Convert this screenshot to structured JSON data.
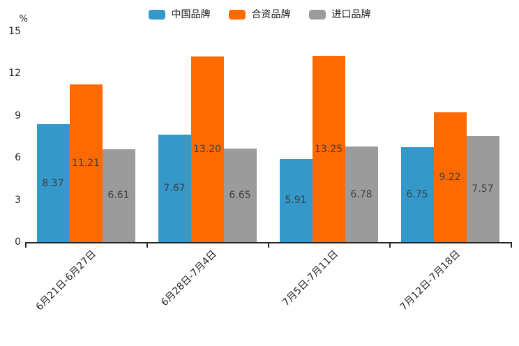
{
  "chart_data": {
    "type": "bar",
    "title": "",
    "xlabel": "",
    "ylabel": "%",
    "categories": [
      "6月21日-6月27日",
      "6月28日-7月4日",
      "7月5日-7月11日",
      "7月12日-7月18日"
    ],
    "series": [
      {
        "name": "中国品牌",
        "color": "#3598CB",
        "values": [
          8.37,
          7.67,
          5.91,
          6.75
        ]
      },
      {
        "name": "合资品牌",
        "color": "#FF6A00",
        "values": [
          11.21,
          13.2,
          13.25,
          9.22
        ]
      },
      {
        "name": "进口品牌",
        "color": "#9B9B9B",
        "values": [
          6.61,
          6.65,
          6.78,
          7.57
        ]
      }
    ],
    "value_labels": [
      [
        "8.37",
        "7.67",
        "5.91",
        "6.75"
      ],
      [
        "11.21",
        "13.20",
        "13.25",
        "9.22"
      ],
      [
        "6.61",
        "6.65",
        "6.78",
        "7.57"
      ]
    ],
    "ylim": [
      0,
      15
    ],
    "yticks": [
      0,
      3,
      6,
      9,
      12,
      15
    ],
    "grid": false,
    "legend_position": "top-center",
    "axis_color": "#262626",
    "value_label_color": "#3f3f3f",
    "background_color": "#ffffff"
  }
}
